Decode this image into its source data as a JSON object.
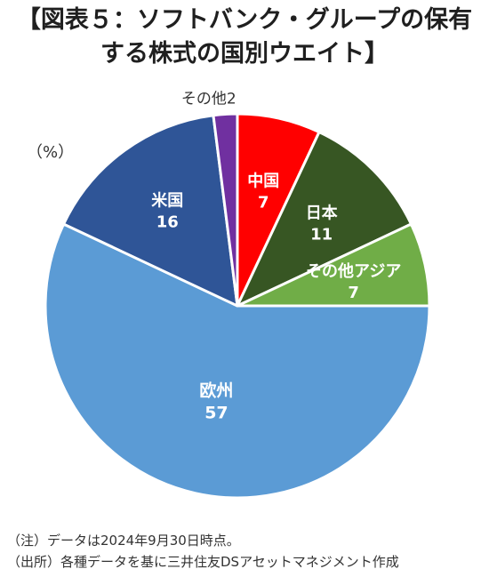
{
  "title_line1": "【図表５：ソフトバンク・グループの保有",
  "title_line2": "する株式の国別ウエイト】",
  "unit_label": "（%）",
  "chart_data": {
    "type": "pie",
    "title": "【図表５：ソフトバンク・グループの保有する株式の国別ウエイト】",
    "unit": "%",
    "categories": [
      "中国",
      "日本",
      "その他アジア",
      "欧州",
      "米国",
      "その他"
    ],
    "values": [
      7,
      11,
      7,
      57,
      16,
      2
    ],
    "colors": [
      "#ff0000",
      "#375623",
      "#70ad47",
      "#5b9bd5",
      "#2f5597",
      "#7030a0"
    ],
    "label_colors": [
      "#ffffff",
      "#ffffff",
      "#ffffff",
      "#ffffff",
      "#ffffff",
      "#333333"
    ],
    "start_angle_deg": 90,
    "direction": "clockwise",
    "grid": false,
    "legend": "none"
  },
  "notes": [
    "（注）データは2024年9月30日時点。",
    "（出所）各種データを基に三井住友DSアセットマネジメント作成"
  ]
}
